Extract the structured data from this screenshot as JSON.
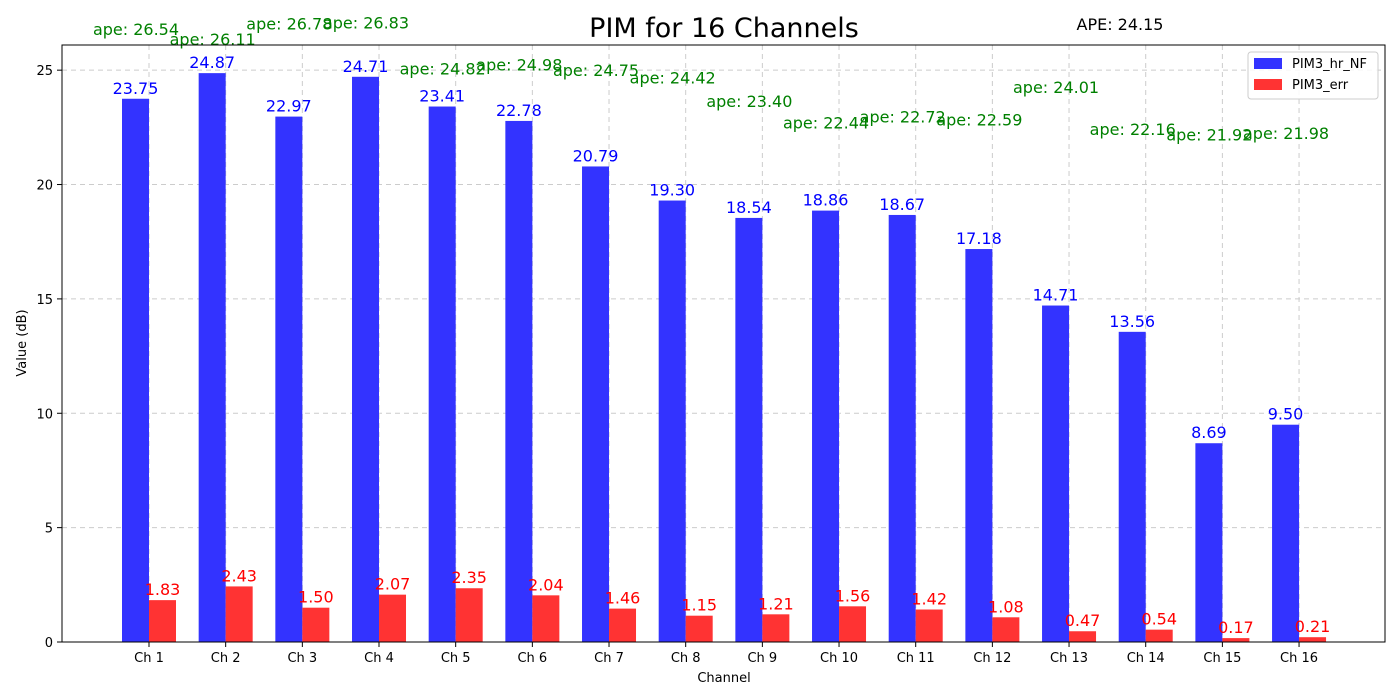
{
  "colors": {
    "series1": "#3333ff",
    "series2": "#ff3333",
    "label1": "#0000ff",
    "label2": "#ff0000",
    "ape": "#008000",
    "grid": "#cccccc"
  },
  "chart_data": {
    "type": "bar",
    "title": "PIM for 16 Channels",
    "overall_ape_text": "APE: 24.15",
    "xlabel": "Channel",
    "ylabel": "Value (dB)",
    "ylim": [
      0,
      26.1
    ],
    "yticks": [
      0,
      5,
      10,
      15,
      20,
      25
    ],
    "grid": true,
    "legend_position": "top-right",
    "categories": [
      "Ch 1",
      "Ch 2",
      "Ch 3",
      "Ch 4",
      "Ch 5",
      "Ch 6",
      "Ch 7",
      "Ch 8",
      "Ch 9",
      "Ch 10",
      "Ch 11",
      "Ch 12",
      "Ch 13",
      "Ch 14",
      "Ch 15",
      "Ch 16"
    ],
    "series": [
      {
        "name": "PIM3_hr_NF",
        "values": [
          23.75,
          24.87,
          22.97,
          24.71,
          23.41,
          22.78,
          20.79,
          19.3,
          18.54,
          18.86,
          18.67,
          17.18,
          14.71,
          13.56,
          8.69,
          9.5
        ],
        "labels": [
          "23.75",
          "24.87",
          "22.97",
          "24.71",
          "23.41",
          "22.78",
          "20.79",
          "19.30",
          "18.54",
          "18.86",
          "18.67",
          "17.18",
          "14.71",
          "13.56",
          "8.69",
          "9.50"
        ]
      },
      {
        "name": "PIM3_err",
        "values": [
          1.83,
          2.43,
          1.5,
          2.07,
          2.35,
          2.04,
          1.46,
          1.15,
          1.21,
          1.56,
          1.42,
          1.08,
          0.47,
          0.54,
          0.17,
          0.21
        ],
        "labels": [
          "1.83",
          "2.43",
          "1.50",
          "2.07",
          "2.35",
          "2.04",
          "1.46",
          "1.15",
          "1.21",
          "1.56",
          "1.42",
          "1.08",
          "0.47",
          "0.54",
          "0.17",
          "0.21"
        ]
      }
    ],
    "ape_annotations": {
      "values": [
        26.54,
        26.11,
        26.78,
        26.83,
        24.82,
        24.98,
        24.75,
        24.42,
        23.4,
        22.44,
        22.72,
        22.59,
        24.01,
        22.16,
        21.92,
        21.98
      ],
      "labels": [
        "ape: 26.54",
        "ape: 26.11",
        "ape: 26.78",
        "ape: 26.83",
        "ape: 24.82",
        "ape: 24.98",
        "ape: 24.75",
        "ape: 24.42",
        "ape: 23.40",
        "ape: 22.44",
        "ape: 22.72",
        "ape: 22.59",
        "ape: 24.01",
        "ape: 22.16",
        "ape: 21.92",
        "ape: 21.98"
      ]
    }
  }
}
